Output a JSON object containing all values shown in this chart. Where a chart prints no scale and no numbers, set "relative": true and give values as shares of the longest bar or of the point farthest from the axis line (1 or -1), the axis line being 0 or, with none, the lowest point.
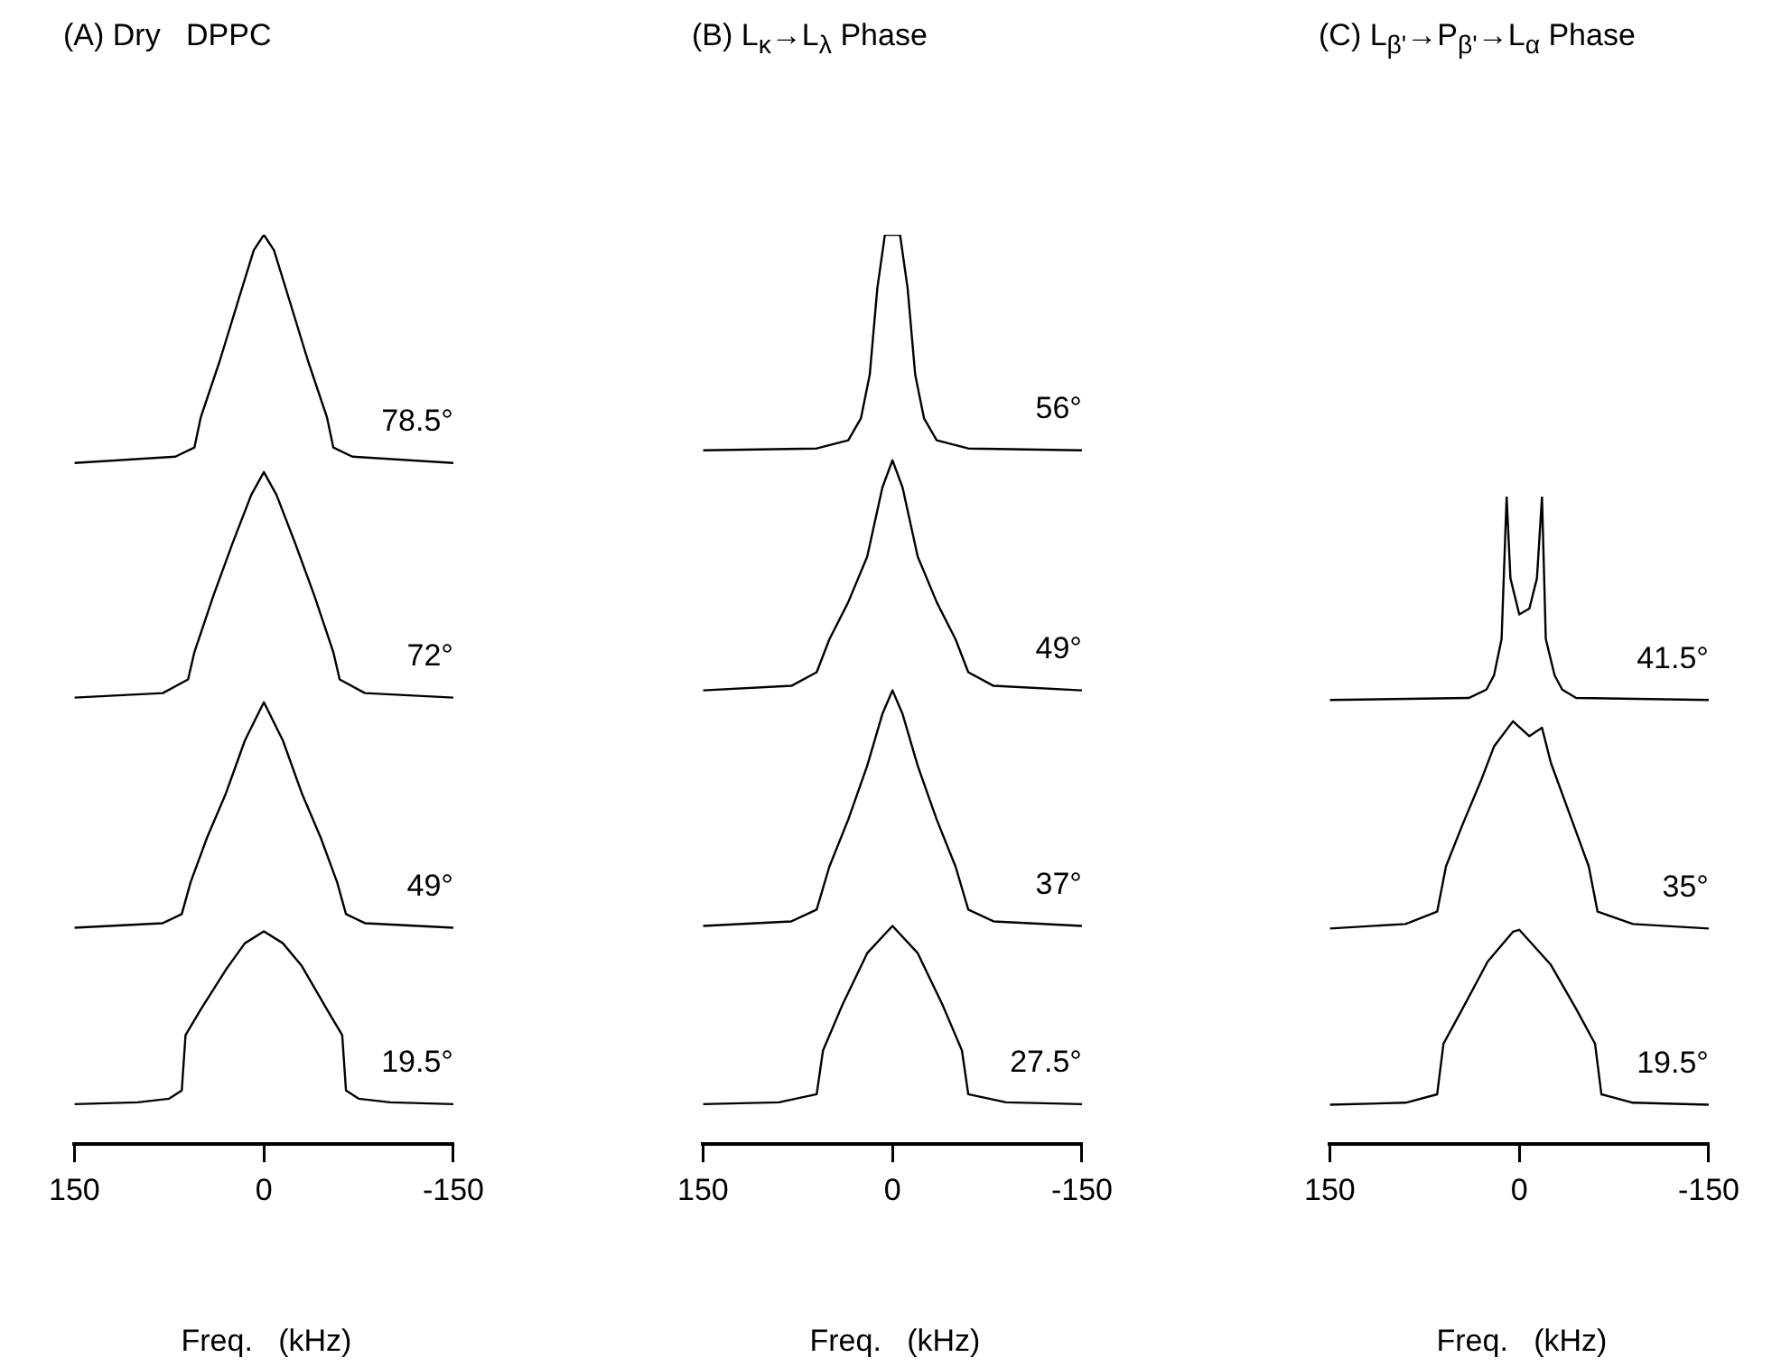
{
  "chart_data": [
    {
      "type": "line",
      "title": "(A) Dry   DPPC",
      "xlabel": "Freq.   (kHz)",
      "xlim": [
        150,
        -150
      ],
      "xticks": [
        150,
        0,
        -150
      ],
      "relative": true,
      "grid": false,
      "marker": "none",
      "line_style": "solid",
      "series": [
        {
          "name": "78.5°",
          "color": "#000000",
          "x": [
            150,
            70,
            55,
            50,
            35,
            20,
            8,
            0,
            -8,
            -20,
            -35,
            -50,
            -55,
            -70,
            -150
          ],
          "values": [
            0.749,
            0.756,
            0.766,
            0.799,
            0.861,
            0.929,
            0.983,
            1,
            0.983,
            0.929,
            0.861,
            0.799,
            0.766,
            0.756,
            0.749
          ]
        },
        {
          "name": "72°",
          "color": "#000000",
          "x": [
            150,
            80,
            60,
            55,
            40,
            25,
            10,
            0,
            -10,
            -25,
            -40,
            -55,
            -60,
            -80,
            -150
          ],
          "values": [
            0.491,
            0.496,
            0.511,
            0.541,
            0.603,
            0.66,
            0.714,
            0.739,
            0.714,
            0.66,
            0.603,
            0.541,
            0.511,
            0.496,
            0.491
          ]
        },
        {
          "name": "49°",
          "color": "#000000",
          "x": [
            150,
            80,
            65,
            58,
            45,
            30,
            15,
            0,
            -15,
            -30,
            -45,
            -58,
            -65,
            -80,
            -150
          ],
          "values": [
            0.238,
            0.243,
            0.253,
            0.288,
            0.337,
            0.386,
            0.444,
            0.486,
            0.444,
            0.386,
            0.337,
            0.288,
            0.253,
            0.243,
            0.238
          ]
        },
        {
          "name": "19.5°",
          "color": "#000000",
          "x": [
            150,
            100,
            75,
            65,
            62,
            50,
            30,
            15,
            0,
            -15,
            -30,
            -50,
            -62,
            -65,
            -75,
            -100,
            -150
          ],
          "values": [
            0.044,
            0.046,
            0.05,
            0.059,
            0.12,
            0.148,
            0.192,
            0.221,
            0.234,
            0.221,
            0.196,
            0.148,
            0.12,
            0.059,
            0.05,
            0.046,
            0.044
          ]
        }
      ]
    },
    {
      "type": "line",
      "title": "(B) L$_{κ}$→L$_{λ}$ Phase",
      "xlabel": "Freq.   (kHz)",
      "xlim": [
        150,
        -150
      ],
      "xticks": [
        150,
        0,
        -150
      ],
      "relative": true,
      "grid": false,
      "marker": "none",
      "line_style": "solid",
      "series": [
        {
          "name": "56°",
          "color": "#000000",
          "x": [
            150,
            60,
            35,
            25,
            18,
            12,
            6,
            0,
            -6,
            -12,
            -18,
            -25,
            -35,
            -60,
            -150
          ],
          "values": [
            0.763,
            0.765,
            0.774,
            0.798,
            0.846,
            0.941,
            1,
            1,
            1,
            0.941,
            0.846,
            0.798,
            0.774,
            0.765,
            0.763
          ]
        },
        {
          "name": "49°",
          "color": "#000000",
          "x": [
            150,
            80,
            60,
            50,
            35,
            20,
            8,
            0,
            -8,
            -20,
            -35,
            -50,
            -60,
            -80,
            -150
          ],
          "values": [
            0.499,
            0.504,
            0.519,
            0.555,
            0.596,
            0.646,
            0.722,
            0.752,
            0.722,
            0.646,
            0.596,
            0.555,
            0.519,
            0.504,
            0.499
          ]
        },
        {
          "name": "37°",
          "color": "#000000",
          "x": [
            150,
            80,
            60,
            50,
            35,
            20,
            8,
            0,
            -8,
            -20,
            -35,
            -50,
            -60,
            -80,
            -150
          ],
          "values": [
            0.24,
            0.245,
            0.258,
            0.305,
            0.357,
            0.416,
            0.473,
            0.499,
            0.473,
            0.416,
            0.357,
            0.305,
            0.258,
            0.245,
            0.24
          ]
        },
        {
          "name": "27.5°",
          "color": "#000000",
          "x": [
            150,
            90,
            60,
            55,
            40,
            20,
            0,
            -20,
            -40,
            -55,
            -60,
            -90,
            -150
          ],
          "values": [
            0.044,
            0.046,
            0.055,
            0.103,
            0.152,
            0.21,
            0.24,
            0.21,
            0.152,
            0.103,
            0.055,
            0.046,
            0.044
          ]
        }
      ]
    },
    {
      "type": "line",
      "title": "(C) L$_{β'}$→P$_{β'}$→L$_{α}$ Phase",
      "xlabel": "Freq.   (kHz)",
      "xlim": [
        150,
        -150
      ],
      "xticks": [
        150,
        0,
        -150
      ],
      "relative": true,
      "grid": false,
      "marker": "none",
      "line_style": "solid",
      "series": [
        {
          "name": "41.5°",
          "color": "#000000",
          "x": [
            150,
            40,
            26,
            20,
            14,
            10,
            7,
            0,
            -8,
            -14,
            -18,
            -21,
            -28,
            -34,
            -45,
            -150
          ],
          "values": [
            0.686,
            0.689,
            0.702,
            0.724,
            0.78,
            1,
            0.874,
            0.818,
            0.827,
            0.874,
            1,
            0.78,
            0.724,
            0.702,
            0.689,
            0.686
          ]
        },
        {
          "name": "35°",
          "color": "#000000",
          "x": [
            150,
            90,
            65,
            58,
            45,
            30,
            20,
            5,
            -8,
            -18,
            -25,
            -40,
            -55,
            -62,
            -90,
            -150
          ],
          "values": [
            0.333,
            0.34,
            0.359,
            0.429,
            0.493,
            0.563,
            0.614,
            0.653,
            0.63,
            0.643,
            0.589,
            0.509,
            0.429,
            0.359,
            0.34,
            0.333
          ]
        },
        {
          "name": "19.5°",
          "color": "#000000",
          "x": [
            150,
            90,
            65,
            60,
            45,
            25,
            5,
            0,
            -25,
            -45,
            -60,
            -65,
            -90,
            -150
          ],
          "values": [
            0.061,
            0.064,
            0.077,
            0.155,
            0.209,
            0.282,
            0.328,
            0.331,
            0.277,
            0.209,
            0.155,
            0.077,
            0.064,
            0.061
          ]
        }
      ]
    }
  ]
}
